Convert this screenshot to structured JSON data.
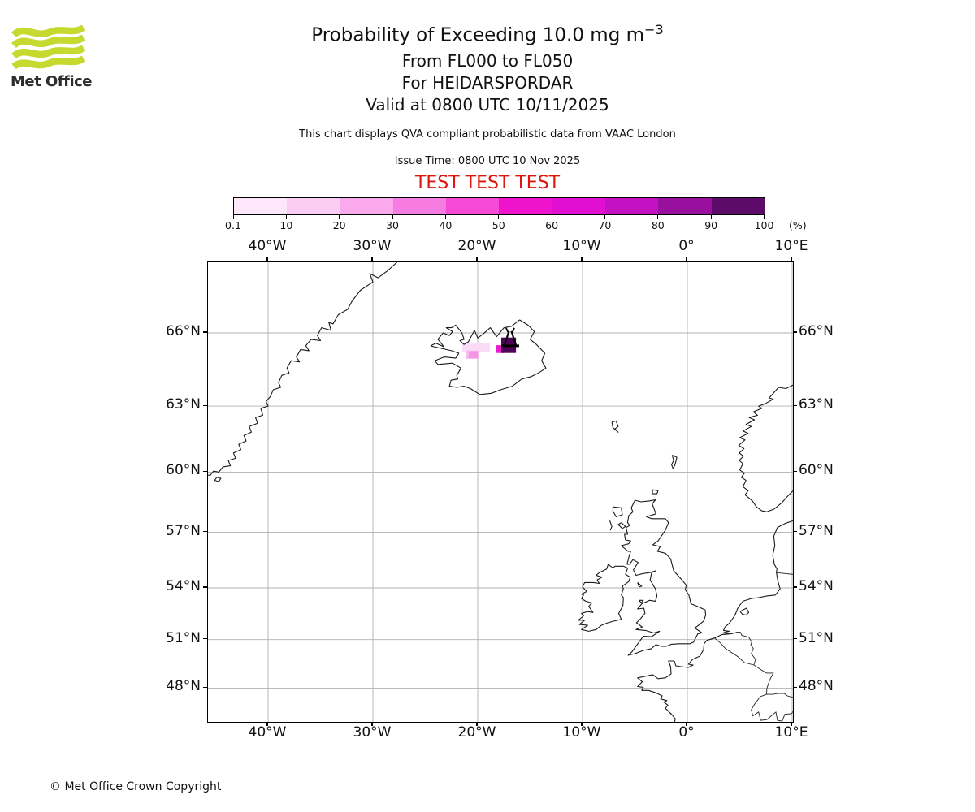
{
  "header": {
    "logo_text": "Met Office",
    "title_main": "Probability of Exceeding 10.0 mg m",
    "title_sup": "−3",
    "subtitle1": "From FL000 to FL050",
    "subtitle2": "For HEIDARSPORDAR",
    "subtitle3": "Valid at 0800 UTC 10/11/2025",
    "note": "This chart displays QVA compliant probabilistic data from VAAC London",
    "issue_time": "Issue Time: 0800 UTC 10 Nov 2025",
    "test_banner": "TEST TEST TEST"
  },
  "colors": {
    "test_banner": "#dd150d",
    "logo_green": "#c5d92f",
    "gridline": "#b0b0b0",
    "coastline": "#1a1a1a"
  },
  "chart_data": {
    "type": "heatmap",
    "subtype": "geographic-probability-map",
    "projection": "mercator",
    "lon_tick_labels": [
      "40°W",
      "30°W",
      "20°W",
      "10°W",
      "0°",
      "10°E"
    ],
    "lon_tick_values": [
      -40,
      -30,
      -20,
      -10,
      0,
      10
    ],
    "lat_tick_labels": [
      "66°N",
      "63°N",
      "60°N",
      "57°N",
      "54°N",
      "51°N",
      "48°N"
    ],
    "lat_tick_values": [
      66,
      63,
      60,
      57,
      54,
      51,
      48
    ],
    "lon_range": [
      -45.74,
      10.08
    ],
    "lat_range": [
      45.56,
      68.58
    ],
    "grid": true,
    "colorbar": {
      "unit_label": "(%)",
      "tick_labels": [
        "0.1",
        "10",
        "20",
        "30",
        "40",
        "50",
        "60",
        "70",
        "80",
        "90",
        "100"
      ],
      "segment_colors": [
        "#fde8fb",
        "#fbcdf4",
        "#f9a9ec",
        "#f77ce1",
        "#f54ad7",
        "#f013cd",
        "#e00fd2",
        "#c312c2",
        "#99109e",
        "#5c0c68"
      ]
    },
    "ash_patches": [
      {
        "lon_min": -21.47,
        "lon_max": -18.84,
        "lat_min": 65.24,
        "lat_max": 65.59,
        "probability_bin": "0.1-10%",
        "color": "#fbdcf6"
      },
      {
        "lon_min": -21.16,
        "lon_max": -19.84,
        "lat_min": 64.97,
        "lat_max": 65.31,
        "probability_bin": "10-20%",
        "color": "#f9b9ee"
      },
      {
        "lon_min": -20.85,
        "lon_max": -20.0,
        "lat_min": 65.01,
        "lat_max": 65.28,
        "probability_bin": "20-30%",
        "color": "#f495e4"
      },
      {
        "lon_min": -18.22,
        "lon_max": -17.52,
        "lat_min": 65.21,
        "lat_max": 65.52,
        "probability_bin": "50-60%",
        "color": "#e81bd0"
      },
      {
        "lon_min": -17.75,
        "lon_max": -16.35,
        "lat_min": 65.21,
        "lat_max": 65.82,
        "probability_bin": "90-100%",
        "color": "#4e0458"
      }
    ],
    "volcano_marker": {
      "name": "HEIDARSPORDAR",
      "lon": -16.9,
      "lat": 65.72
    }
  },
  "footer": {
    "copyright": "© Met Office Crown Copyright"
  }
}
